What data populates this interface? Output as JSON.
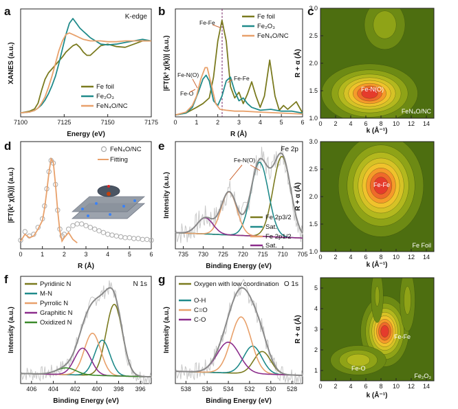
{
  "chart_data": [
    {
      "id": "a",
      "type": "line",
      "letter": "a",
      "corner": "K-edge",
      "xlabel": "Energy (eV)",
      "ylabel": "XANES (a.u.)",
      "xlim": [
        7100,
        7175
      ],
      "xticks": [
        7100,
        7125,
        7150,
        7175
      ],
      "legend_position": "bottom-right",
      "series": [
        {
          "name": "Fe foil",
          "color": "#7a7a1e",
          "x": [
            7100,
            7105,
            7108,
            7110,
            7112,
            7114,
            7116,
            7118,
            7120,
            7122,
            7124,
            7126,
            7128,
            7130,
            7132,
            7134,
            7136,
            7138,
            7140,
            7143,
            7146,
            7150,
            7155,
            7160,
            7165,
            7170,
            7175
          ],
          "y": [
            0.0,
            0.02,
            0.05,
            0.12,
            0.28,
            0.42,
            0.5,
            0.55,
            0.6,
            0.65,
            0.7,
            0.76,
            0.8,
            0.84,
            0.86,
            0.82,
            0.76,
            0.72,
            0.72,
            0.78,
            0.84,
            0.86,
            0.83,
            0.82,
            0.86,
            0.9,
            0.9
          ]
        },
        {
          "name": "Fe₂O₃",
          "color": "#1f8a8a",
          "x": [
            7100,
            7105,
            7108,
            7110,
            7112,
            7114,
            7116,
            7118,
            7120,
            7122,
            7124,
            7126,
            7128,
            7130,
            7132,
            7134,
            7136,
            7138,
            7140,
            7143,
            7146,
            7150,
            7155,
            7160,
            7165,
            7170,
            7175
          ],
          "y": [
            0.0,
            0.01,
            0.03,
            0.06,
            0.1,
            0.16,
            0.24,
            0.34,
            0.46,
            0.62,
            0.8,
            0.98,
            1.12,
            1.18,
            1.12,
            1.06,
            1.02,
            0.98,
            0.94,
            0.9,
            0.86,
            0.85,
            0.86,
            0.88,
            0.9,
            0.92,
            0.9
          ]
        },
        {
          "name": "FeN₄O/NC",
          "color": "#e8a06a",
          "x": [
            7100,
            7105,
            7108,
            7110,
            7112,
            7114,
            7116,
            7118,
            7120,
            7122,
            7124,
            7126,
            7128,
            7130,
            7132,
            7134,
            7136,
            7138,
            7140,
            7143,
            7146,
            7150,
            7155,
            7160,
            7165,
            7170,
            7175
          ],
          "y": [
            0.0,
            0.01,
            0.03,
            0.06,
            0.12,
            0.2,
            0.32,
            0.46,
            0.62,
            0.78,
            0.9,
            0.98,
            1.0,
            0.98,
            0.96,
            0.94,
            0.92,
            0.91,
            0.9,
            0.9,
            0.9,
            0.89,
            0.89,
            0.9,
            0.9,
            0.9,
            0.9
          ]
        }
      ]
    },
    {
      "id": "b",
      "type": "line",
      "letter": "b",
      "xlabel": "R (Å)",
      "ylabel": "|FT(k³ χ(k))| (a.u.)",
      "xlim": [
        0,
        6
      ],
      "xticks": [
        0,
        1,
        2,
        3,
        4,
        5,
        6
      ],
      "legend_position": "top-right",
      "annotations": [
        "Fe-Fe",
        "Fe-N(O)",
        "Fe-O",
        "Fe-Fe"
      ],
      "series": [
        {
          "name": "Fe foil",
          "color": "#7a7a1e",
          "x": [
            0,
            0.5,
            1.0,
            1.3,
            1.6,
            1.8,
            2.0,
            2.2,
            2.4,
            2.6,
            2.8,
            3.0,
            3.2,
            3.4,
            3.6,
            3.8,
            4.0,
            4.2,
            4.45,
            4.7,
            4.9,
            5.1,
            5.3,
            5.5,
            5.7,
            6.0
          ],
          "y": [
            0.0,
            0.02,
            0.08,
            0.12,
            0.18,
            0.4,
            0.78,
            1.0,
            0.78,
            0.3,
            0.18,
            0.24,
            0.12,
            0.22,
            0.35,
            0.2,
            0.08,
            0.2,
            0.58,
            0.2,
            0.05,
            0.1,
            0.06,
            0.1,
            0.14,
            0.02
          ]
        },
        {
          "name": "Fe₂O₃",
          "color": "#1f8a8a",
          "x": [
            0,
            0.5,
            0.8,
            1.1,
            1.3,
            1.45,
            1.6,
            1.8,
            2.0,
            2.2,
            2.4,
            2.6,
            2.8,
            3.0,
            3.2,
            3.4,
            3.6,
            4.0,
            4.5,
            5.0,
            5.5,
            6.0
          ],
          "y": [
            0.0,
            0.02,
            0.08,
            0.25,
            0.38,
            0.42,
            0.36,
            0.15,
            0.1,
            0.2,
            0.36,
            0.4,
            0.25,
            0.15,
            0.18,
            0.12,
            0.08,
            0.05,
            0.06,
            0.04,
            0.04,
            0.02
          ]
        },
        {
          "name": "FeN₄O/NC",
          "color": "#e8a06a",
          "x": [
            0,
            0.5,
            0.8,
            1.0,
            1.2,
            1.4,
            1.5,
            1.7,
            1.9,
            2.1,
            2.4,
            2.8,
            3.2,
            4.0,
            5.0,
            6.0
          ],
          "y": [
            0.0,
            0.03,
            0.1,
            0.2,
            0.38,
            0.5,
            0.5,
            0.32,
            0.12,
            0.06,
            0.05,
            0.04,
            0.04,
            0.03,
            0.02,
            0.01
          ]
        }
      ]
    },
    {
      "id": "c1",
      "type": "heatmap",
      "letter": "c",
      "corner": "FeN₄O/NC",
      "xlabel": "k (Å⁻¹)",
      "ylabel": "R + α (Å)",
      "xlim": [
        0,
        15
      ],
      "ylim": [
        1.0,
        3.0
      ],
      "xticks": [
        0,
        2,
        4,
        6,
        8,
        10,
        12,
        14
      ],
      "yticks": [
        1.0,
        1.5,
        2.0,
        2.5,
        3.0
      ],
      "peak_labels": [
        "Fe-N(O)"
      ],
      "peaks": [
        {
          "k": 6.5,
          "r": 1.45,
          "amp": 1.0,
          "sk": 2.6,
          "sr": 0.22
        },
        {
          "k": 8.5,
          "r": 2.7,
          "amp": 0.25,
          "sk": 1.5,
          "sr": 0.25
        }
      ]
    },
    {
      "id": "c2",
      "type": "heatmap",
      "corner": "Fe Foil",
      "xlabel": "k (Å⁻¹)",
      "ylabel": "R + α (Å)",
      "xlim": [
        0,
        15
      ],
      "ylim": [
        1.0,
        3.0
      ],
      "xticks": [
        0,
        2,
        4,
        6,
        8,
        10,
        12,
        14
      ],
      "yticks": [
        1.0,
        1.5,
        2.0,
        2.5,
        3.0
      ],
      "peak_labels": [
        "Fe-Fe"
      ],
      "peaks": [
        {
          "k": 8.0,
          "r": 2.2,
          "amp": 1.0,
          "sk": 2.3,
          "sr": 0.38
        }
      ]
    },
    {
      "id": "c3",
      "type": "heatmap",
      "corner": "Fe₂O₃",
      "xlabel": "k (Å⁻¹)",
      "ylabel": "R + α (Å)",
      "xlim": [
        0,
        15
      ],
      "ylim": [
        0.5,
        5.5
      ],
      "xticks": [
        0,
        2,
        4,
        6,
        8,
        10,
        12,
        14
      ],
      "yticks": [
        1,
        2,
        3,
        4,
        5
      ],
      "peak_labels": [
        "Fe-Fe",
        "Fe-O"
      ],
      "peaks": [
        {
          "k": 8.5,
          "r": 2.9,
          "amp": 1.0,
          "sk": 1.3,
          "sr": 0.7
        },
        {
          "k": 5.0,
          "r": 1.5,
          "amp": 0.4,
          "sk": 1.8,
          "sr": 0.35
        },
        {
          "k": 11.5,
          "r": 4.4,
          "amp": 0.2,
          "sk": 0.6,
          "sr": 0.9
        },
        {
          "k": 7.5,
          "r": 4.6,
          "amp": 0.18,
          "sk": 0.5,
          "sr": 0.8
        }
      ]
    },
    {
      "id": "d",
      "type": "scatter",
      "letter": "d",
      "xlabel": "R (Å)",
      "ylabel": "|FT(k³ χ(k))| (a.u.)",
      "xlim": [
        0,
        6
      ],
      "xticks": [
        0,
        1,
        2,
        3,
        4,
        5,
        6
      ],
      "legend_position": "top-right",
      "series": [
        {
          "name": "FeN₄O/NC",
          "color": "#aaaaaa",
          "x": [
            0,
            0.2,
            0.4,
            0.6,
            0.8,
            1.0,
            1.1,
            1.2,
            1.3,
            1.4,
            1.5,
            1.6,
            1.7,
            1.8,
            1.9,
            2.0,
            2.2,
            2.4,
            2.6,
            2.8,
            3.0,
            3.2,
            3.4,
            3.6,
            3.8,
            4.0,
            4.2,
            4.4,
            4.6,
            4.8,
            5.0,
            5.2,
            5.4,
            5.6,
            5.8,
            6.0
          ],
          "y": [
            0.05,
            0.15,
            0.1,
            0.12,
            0.2,
            0.3,
            0.45,
            0.65,
            0.85,
            0.98,
            0.95,
            0.7,
            0.4,
            0.18,
            0.1,
            0.12,
            0.18,
            0.22,
            0.24,
            0.24,
            0.22,
            0.2,
            0.18,
            0.16,
            0.14,
            0.12,
            0.11,
            0.1,
            0.09,
            0.08,
            0.08,
            0.07,
            0.07,
            0.06,
            0.06,
            0.05
          ]
        },
        {
          "name": "Fitting",
          "color": "#e8a06a",
          "x": [
            0,
            0.2,
            0.4,
            0.6,
            0.8,
            1.0,
            1.1,
            1.2,
            1.3,
            1.4,
            1.5,
            1.6,
            1.7,
            1.8,
            1.9,
            2.0,
            2.2,
            2.4,
            2.6
          ],
          "y": [
            0.04,
            0.12,
            0.08,
            0.1,
            0.18,
            0.28,
            0.42,
            0.62,
            0.84,
            1.0,
            0.96,
            0.7,
            0.4,
            0.16,
            0.04,
            0.08,
            0.14,
            0.06,
            0.02
          ]
        }
      ]
    },
    {
      "id": "e",
      "type": "line",
      "letter": "e",
      "corner": "Fe 2p",
      "xlabel": "Binding Energy (eV)",
      "ylabel": "Intensity (a.u.)",
      "xlim": [
        737,
        705
      ],
      "xticks": [
        735,
        730,
        725,
        720,
        715,
        710,
        705
      ],
      "legend_position": "bottom-right",
      "annotations": [
        "Fe-N(O)"
      ],
      "series": [
        {
          "name": "Fe 2p3/2",
          "color": "#7a7a1e",
          "peaks": [
            [
              710.2,
              0.6,
              2.2
            ]
          ]
        },
        {
          "name": "Sat.",
          "color": "#1f8a8a",
          "peaks": [
            [
              715.8,
              0.55,
              2.2
            ]
          ]
        },
        {
          "name": "Fe 2p1/2",
          "color": "#e8a06a",
          "peaks": [
            [
              723.5,
              0.32,
              2.0
            ]
          ]
        },
        {
          "name": "Sat.",
          "color": "#8b2c8b",
          "peaks": [
            [
              729.5,
              0.12,
              2.0
            ]
          ]
        }
      ]
    },
    {
      "id": "f",
      "type": "line",
      "letter": "f",
      "corner": "N 1s",
      "xlabel": "Binding Energy (eV)",
      "ylabel": "Intensity (a.u.)",
      "xlim": [
        407,
        395
      ],
      "xticks": [
        406,
        404,
        402,
        400,
        398,
        396
      ],
      "legend_position": "top-left",
      "series": [
        {
          "name": "Pyridinic N",
          "color": "#7a7a1e",
          "peaks": [
            [
              398.4,
              0.85,
              0.75
            ]
          ]
        },
        {
          "name": "M-N",
          "color": "#1f8a8a",
          "peaks": [
            [
              399.5,
              0.42,
              0.7
            ]
          ]
        },
        {
          "name": "Pyrrolic N",
          "color": "#e8a06a",
          "peaks": [
            [
              400.4,
              0.5,
              0.75
            ]
          ]
        },
        {
          "name": "Graphitic N",
          "color": "#8b2c8b",
          "peaks": [
            [
              401.3,
              0.32,
              0.75
            ]
          ]
        },
        {
          "name": "Oxidized N",
          "color": "#3a8a2a",
          "peaks": [
            [
              402.8,
              0.08,
              0.9
            ]
          ]
        }
      ]
    },
    {
      "id": "g",
      "type": "line",
      "letter": "g",
      "corner": "O 1s",
      "xlabel": "Binding Energy (eV)",
      "ylabel": "Intensity (a.u.)",
      "xlim": [
        539,
        527
      ],
      "xticks": [
        538,
        536,
        534,
        532,
        530,
        528
      ],
      "legend_position": "top-left",
      "series": [
        {
          "name": "Oxygen with low coordination",
          "color": "#7a7a1e",
          "peaks": [
            [
              530.8,
              0.22,
              0.8
            ]
          ]
        },
        {
          "name": "O-H",
          "color": "#1f8a8a",
          "peaks": [
            [
              531.7,
              0.27,
              0.85
            ]
          ]
        },
        {
          "name": "C=O",
          "color": "#e8a06a",
          "peaks": [
            [
              532.8,
              0.55,
              0.95
            ]
          ]
        },
        {
          "name": "C-O",
          "color": "#8b2c8b",
          "peaks": [
            [
              534.0,
              0.3,
              1.05
            ]
          ]
        }
      ]
    }
  ]
}
